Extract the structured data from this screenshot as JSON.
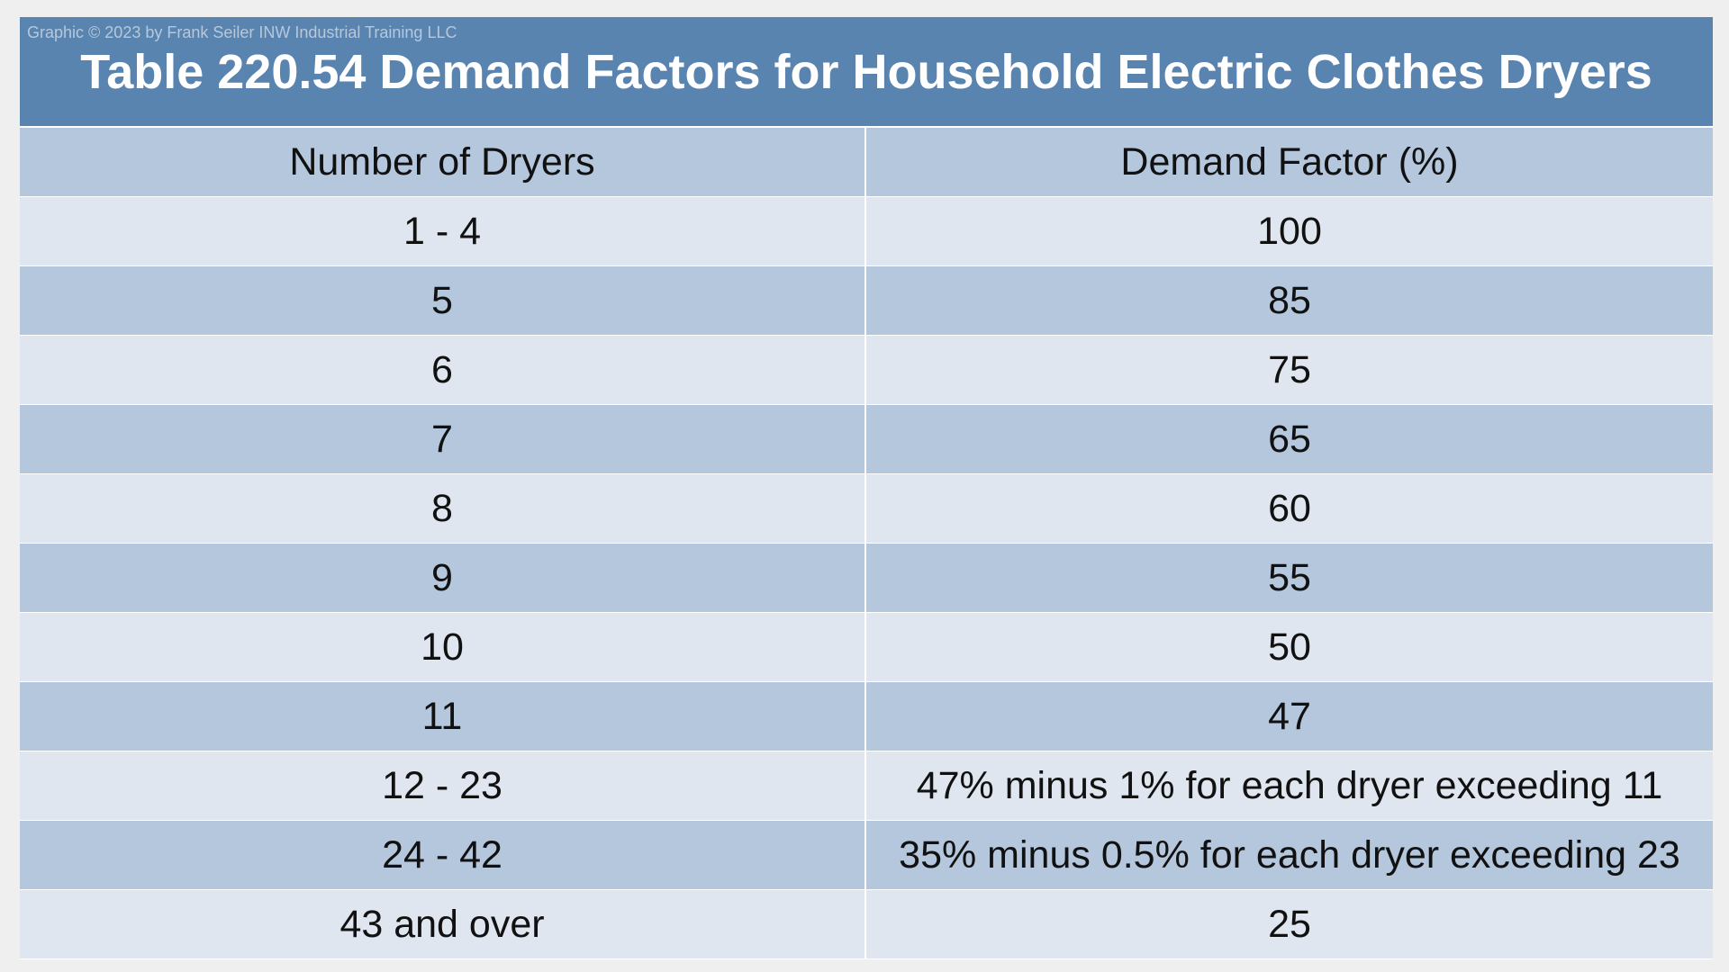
{
  "credit": "Graphic © 2023 by Frank Seiler INW Industrial Training LLC",
  "title": "Table 220.54 Demand Factors for Household Electric Clothes Dryers",
  "table": {
    "headers": [
      "Number of Dryers",
      "Demand Factor (%)"
    ],
    "rows": [
      [
        "1 - 4",
        "100"
      ],
      [
        "5",
        "85"
      ],
      [
        "6",
        "75"
      ],
      [
        "7",
        "65"
      ],
      [
        "8",
        "60"
      ],
      [
        "9",
        "55"
      ],
      [
        "10",
        "50"
      ],
      [
        "11",
        "47"
      ],
      [
        "12 - 23",
        "47% minus 1% for each dryer exceeding 11"
      ],
      [
        "24 - 42",
        "35% minus 0.5% for each dryer exceeding 23"
      ],
      [
        "43 and over",
        "25"
      ]
    ]
  },
  "colors": {
    "title_bar": "#5a84b0",
    "row_dark": "#b5c7dd",
    "row_light": "#dfe6ef",
    "title_text": "#ffffff"
  }
}
